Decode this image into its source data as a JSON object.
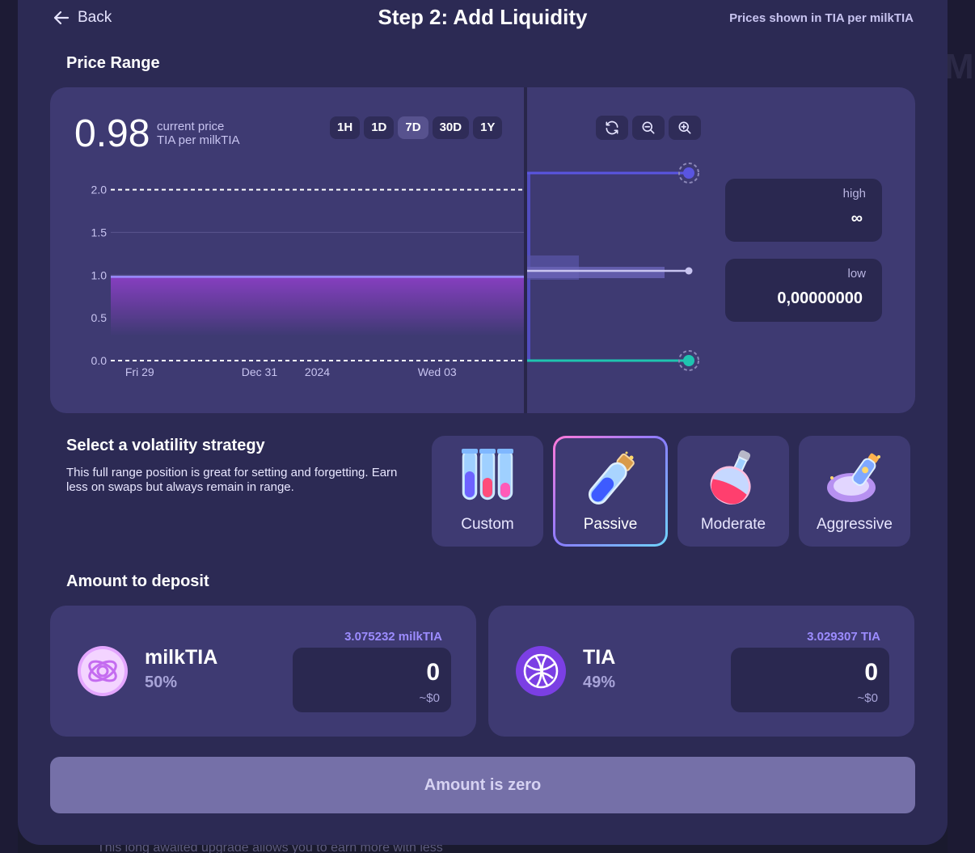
{
  "background": {
    "ghost_letter": "M",
    "ghost_text": "This long awaited upgrade allows you to earn more with less"
  },
  "header": {
    "back_label": "Back",
    "title": "Step 2: Add Liquidity",
    "price_unit_note": "Prices shown in TIA per milkTIA"
  },
  "price_range": {
    "section_label": "Price Range",
    "current_price": "0.98",
    "current_price_label": "current price",
    "current_price_unit": "TIA per milkTIA",
    "timeframes": [
      {
        "label": "1H",
        "active": false
      },
      {
        "label": "1D",
        "active": false
      },
      {
        "label": "7D",
        "active": true
      },
      {
        "label": "30D",
        "active": false
      },
      {
        "label": "1Y",
        "active": false
      }
    ],
    "tools": [
      "refresh-icon",
      "zoom-out-icon",
      "zoom-in-icon"
    ],
    "high": {
      "label": "high",
      "value": "∞"
    },
    "low": {
      "label": "low",
      "value": "0,00000000"
    }
  },
  "chart_data": {
    "type": "area",
    "y_ticks": [
      "2.0",
      "1.5",
      "1.0",
      "0.5",
      "0.0"
    ],
    "ylim": [
      0,
      2.1
    ],
    "x_ticks": [
      "Fri 29",
      "Dec 31",
      "2024",
      "Wed 03"
    ],
    "x_ticks_pos": [
      0.07,
      0.36,
      0.5,
      0.79
    ],
    "series": [
      {
        "values": [
          0.98,
          0.98,
          0.98,
          0.98,
          0.98,
          0.98,
          0.98
        ]
      }
    ],
    "range_high_line": 2.0,
    "range_low_line": 0.0,
    "colors": {
      "line": "#9b8cff",
      "fill_top": "#8a3fc4",
      "fill_bottom": "#3e3a72",
      "high_handle": "#5a55e0",
      "low_handle": "#1fc4b0",
      "current_handle": "#c8c4f0"
    }
  },
  "strategy": {
    "section_label": "Select a volatility strategy",
    "description": "This full range position is great for setting and forgetting. Earn less on swaps but always remain in range.",
    "options": [
      {
        "name": "Custom",
        "selected": false,
        "icon": "test-tubes-icon"
      },
      {
        "name": "Passive",
        "selected": true,
        "icon": "potion-vial-icon"
      },
      {
        "name": "Moderate",
        "selected": false,
        "icon": "potion-flask-icon"
      },
      {
        "name": "Aggressive",
        "selected": false,
        "icon": "rocket-flask-icon"
      }
    ]
  },
  "deposit": {
    "section_label": "Amount to deposit",
    "tokens": [
      {
        "symbol": "milkTIA",
        "percent": "50%",
        "balance": "3.075232 milkTIA",
        "amount": "0",
        "usd": "~$0",
        "icon": "milktia-logo-icon",
        "color": "#e4a6ff"
      },
      {
        "symbol": "TIA",
        "percent": "49%",
        "balance": "3.029307 TIA",
        "amount": "0",
        "usd": "~$0",
        "icon": "tia-logo-icon",
        "color": "#7b3fe4"
      }
    ]
  },
  "submit": {
    "label": "Amount is zero"
  }
}
